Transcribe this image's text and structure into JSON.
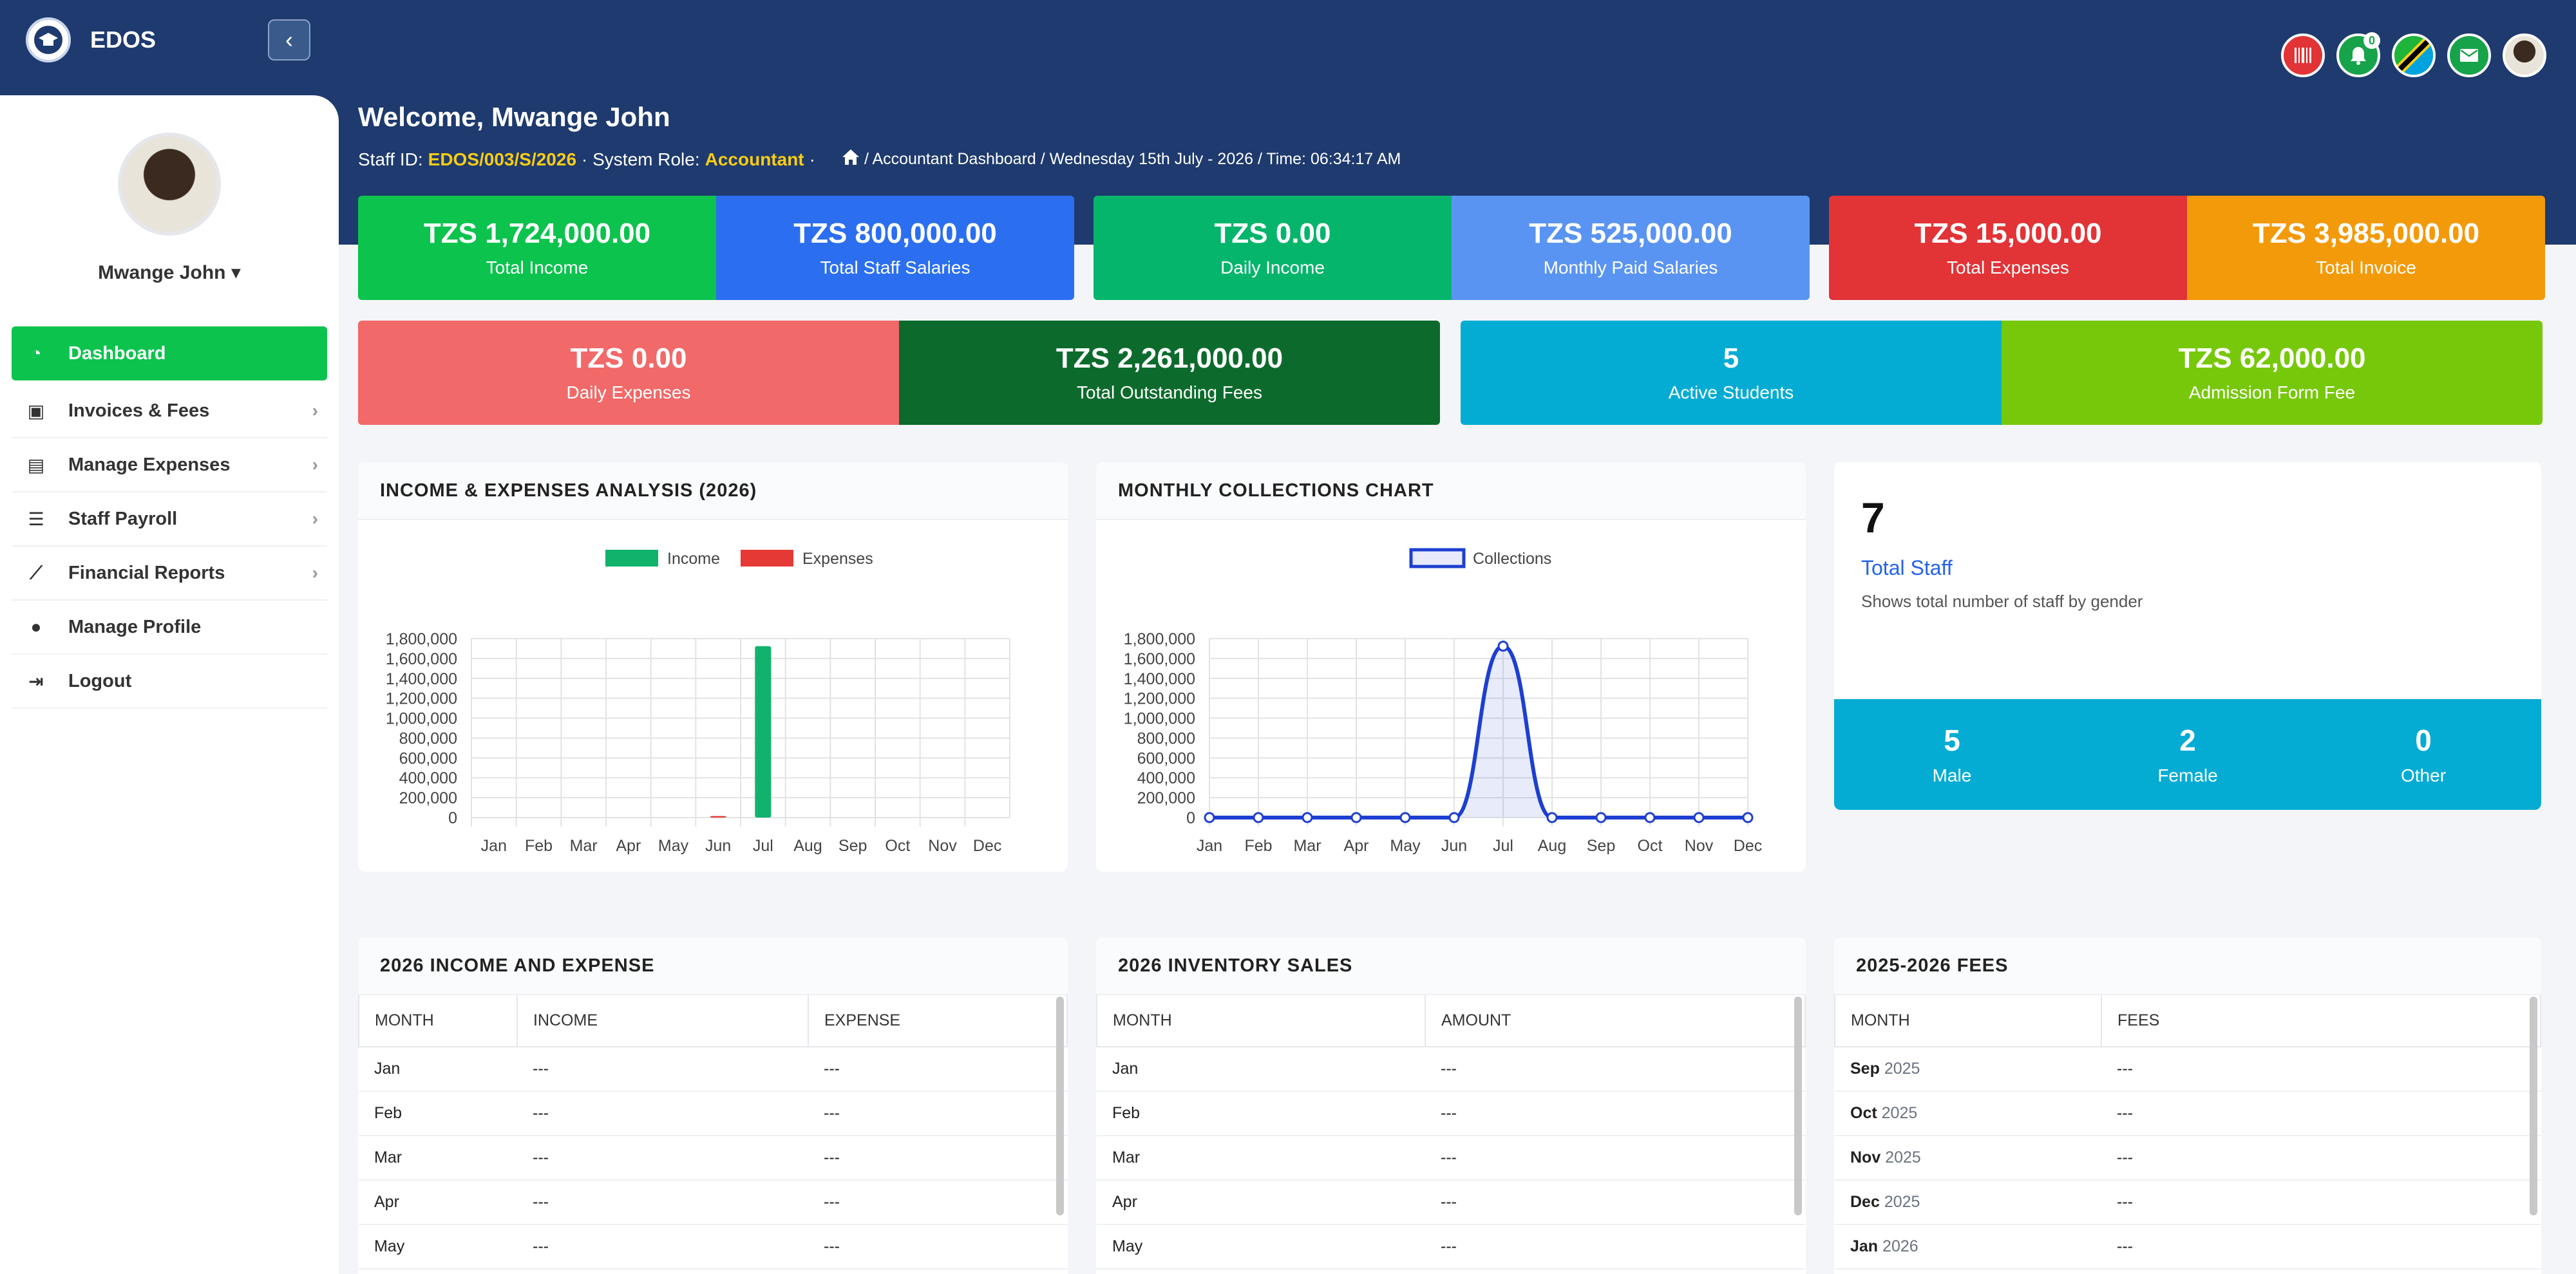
{
  "brand": {
    "name": "EDOS"
  },
  "sidebar": {
    "user_name": "Mwange John",
    "items": [
      {
        "label": "Dashboard",
        "icon": "dashboard-icon",
        "active": true
      },
      {
        "label": "Invoices & Fees",
        "icon": "money-icon"
      },
      {
        "label": "Manage Expenses",
        "icon": "wallet-icon"
      },
      {
        "label": "Staff Payroll",
        "icon": "payroll-icon"
      },
      {
        "label": "Financial Reports",
        "icon": "chart-line-icon"
      },
      {
        "label": "Manage Profile",
        "icon": "user-circle-icon"
      },
      {
        "label": "Logout",
        "icon": "logout-icon"
      }
    ]
  },
  "topbar": {
    "notification_count": "0",
    "icons": [
      "barcode-icon",
      "bell-icon",
      "flag-icon",
      "mail-icon",
      "user-avatar"
    ]
  },
  "welcome": "Welcome, Mwange John",
  "staff": {
    "id_label": "Staff ID:",
    "id": "EDOS/003/S/2026",
    "role_label": "· System Role:",
    "role": "Accountant",
    "sep": "·",
    "breadcrumb": " / Accountant Dashboard / Wednesday 15th July - 2026 / Time: 06:34:17 AM"
  },
  "stats_row1": [
    {
      "value": "TZS 1,724,000.00",
      "label": "Total Income",
      "color": "#0bc34d"
    },
    {
      "value": "TZS 800,000.00",
      "label": "Total Staff Salaries",
      "color": "#2b6ff0"
    },
    {
      "value": "TZS 0.00",
      "label": "Daily Income",
      "color": "#05b56c"
    },
    {
      "value": "TZS 525,000.00",
      "label": "Monthly Paid Salaries",
      "color": "#5a94f2"
    },
    {
      "value": "TZS 15,000.00",
      "label": "Total Expenses",
      "color": "#e23336"
    },
    {
      "value": "TZS 3,985,000.00",
      "label": "Total Invoice",
      "color": "#f39a0b"
    }
  ],
  "stats_row2": [
    {
      "value": "TZS 0.00",
      "label": "Daily Expenses",
      "color": "#f16969"
    },
    {
      "value": "TZS 2,261,000.00",
      "label": "Total Outstanding Fees",
      "color": "#0c6b2c"
    },
    {
      "value": "5",
      "label": "Active Students",
      "color": "#04acd4"
    },
    {
      "value": "TZS 62,000.00",
      "label": "Admission Form Fee",
      "color": "#77c80a"
    }
  ],
  "charts_titles": {
    "income_expense": "INCOME & EXPENSES ANALYSIS (2026)",
    "collections": "MONTHLY COLLECTIONS CHART"
  },
  "chart_data": [
    {
      "type": "bar",
      "title": "INCOME & EXPENSES ANALYSIS (2026)",
      "categories": [
        "Jan",
        "Feb",
        "Mar",
        "Apr",
        "May",
        "Jun",
        "Jul",
        "Aug",
        "Sep",
        "Oct",
        "Nov",
        "Dec"
      ],
      "series": [
        {
          "name": "Income",
          "color": "#10b26c",
          "values": [
            0,
            0,
            0,
            0,
            0,
            0,
            1724000,
            0,
            0,
            0,
            0,
            0
          ]
        },
        {
          "name": "Expenses",
          "color": "#e53935",
          "values": [
            0,
            0,
            0,
            0,
            0,
            15000,
            0,
            0,
            0,
            0,
            0,
            0
          ]
        }
      ],
      "ylim": [
        0,
        1800000
      ],
      "yticks": [
        "1,800,000",
        "1,600,000",
        "1,400,000",
        "1,200,000",
        "1,000,000",
        "800,000",
        "600,000",
        "400,000",
        "200,000",
        "0"
      ],
      "grid": true,
      "legend": "top"
    },
    {
      "type": "line",
      "title": "MONTHLY COLLECTIONS CHART",
      "categories": [
        "Jan",
        "Feb",
        "Mar",
        "Apr",
        "May",
        "Jun",
        "Jul",
        "Aug",
        "Sep",
        "Oct",
        "Nov",
        "Dec"
      ],
      "series": [
        {
          "name": "Collections",
          "color": "#1d3fd1",
          "values": [
            0,
            0,
            0,
            0,
            0,
            0,
            1724000,
            0,
            0,
            0,
            0,
            0
          ]
        }
      ],
      "ylim": [
        0,
        1800000
      ],
      "yticks": [
        "1,800,000",
        "1,600,000",
        "1,400,000",
        "1,200,000",
        "1,000,000",
        "800,000",
        "600,000",
        "400,000",
        "200,000",
        "0"
      ],
      "grid": true,
      "legend": "top"
    }
  ],
  "staff_card": {
    "count": "7",
    "title": "Total Staff",
    "desc": "Shows total number of staff by gender",
    "male": "5",
    "male_label": "Male",
    "female": "2",
    "female_label": "Female",
    "other": "0",
    "other_label": "Other"
  },
  "income_table": {
    "title": "2026 INCOME AND EXPENSE",
    "headers": [
      "MONTH",
      "INCOME",
      "EXPENSE"
    ],
    "rows": [
      [
        "Jan",
        "---",
        "---"
      ],
      [
        "Feb",
        "---",
        "---"
      ],
      [
        "Mar",
        "---",
        "---"
      ],
      [
        "Apr",
        "---",
        "---"
      ],
      [
        "May",
        "---",
        "---"
      ]
    ]
  },
  "inventory_table": {
    "title": "2026 INVENTORY SALES",
    "headers": [
      "MONTH",
      "AMOUNT"
    ],
    "rows": [
      [
        "Jan",
        "---"
      ],
      [
        "Feb",
        "---"
      ],
      [
        "Mar",
        "---"
      ],
      [
        "Apr",
        "---"
      ],
      [
        "May",
        "---"
      ]
    ]
  },
  "fees_table": {
    "title": "2025-2026 FEES",
    "headers": [
      "MONTH",
      "FEES"
    ],
    "rows": [
      [
        "Sep",
        "2025",
        "---"
      ],
      [
        "Oct",
        "2025",
        "---"
      ],
      [
        "Nov",
        "2025",
        "---"
      ],
      [
        "Dec",
        "2025",
        "---"
      ],
      [
        "Jan",
        "2026",
        "---"
      ]
    ]
  }
}
